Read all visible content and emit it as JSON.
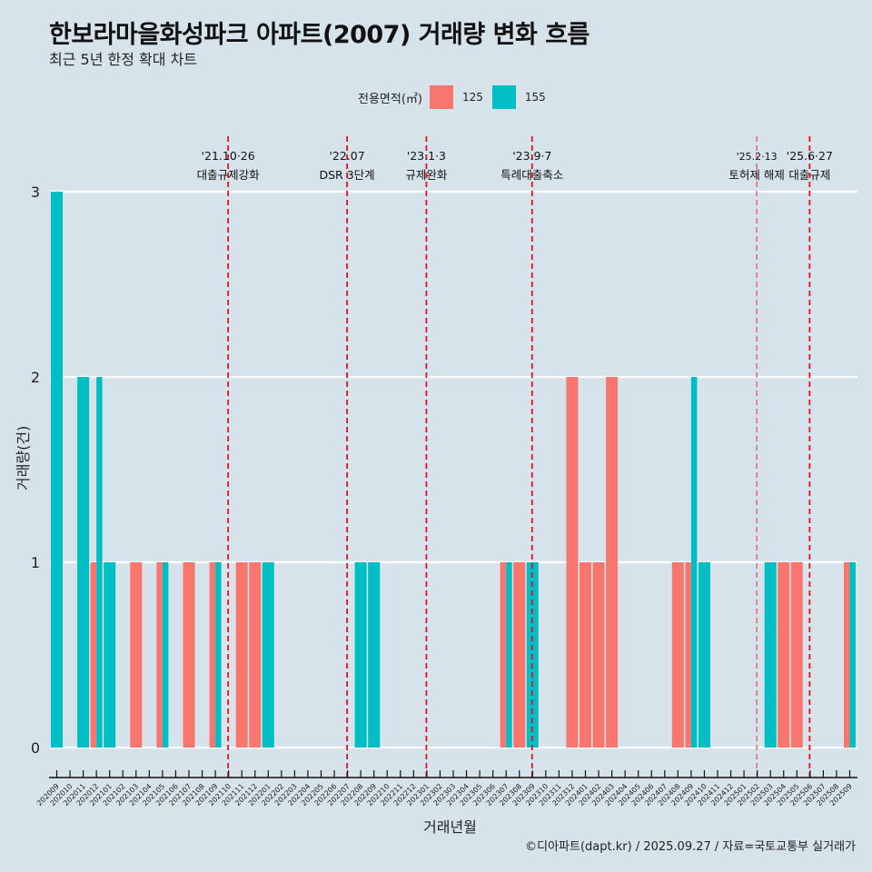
{
  "header": {
    "title": "한보라마을화성파크 아파트(2007) 거래량 변화 흐름",
    "subtitle": "최근 5년 한정 확대 차트"
  },
  "legend": {
    "title": "전용면적(㎡)",
    "items": [
      {
        "label": "125",
        "color": "#f8766d"
      },
      {
        "label": "155",
        "color": "#00bfc4"
      }
    ]
  },
  "caption": "©디아파트(dapt.kr) / 2025.09.27 / 자료=국토교통부 실거래가",
  "chart_data": {
    "type": "bar",
    "title": "한보라마을화성파크 아파트(2007) 거래량 변화 흐름",
    "subtitle": "최근 5년 한정 확대 차트",
    "xlabel": "거래년월",
    "ylabel": "거래량(건)",
    "ylim": [
      0,
      3
    ],
    "yticks": [
      0,
      1,
      2,
      3
    ],
    "grid": true,
    "legend_position": "top",
    "categories": [
      "202009",
      "202010",
      "202011",
      "202012",
      "202101",
      "202102",
      "202103",
      "202104",
      "202105",
      "202106",
      "202107",
      "202108",
      "202109",
      "202110",
      "202111",
      "202112",
      "202201",
      "202202",
      "202203",
      "202204",
      "202205",
      "202206",
      "202207",
      "202208",
      "202209",
      "202210",
      "202211",
      "202212",
      "202301",
      "202302",
      "202303",
      "202304",
      "202305",
      "202306",
      "202307",
      "202308",
      "202309",
      "202310",
      "202311",
      "202312",
      "202401",
      "202402",
      "202403",
      "202404",
      "202405",
      "202406",
      "202407",
      "202408",
      "202409",
      "202410",
      "202411",
      "202412",
      "202501",
      "202502",
      "202503",
      "202504",
      "202505",
      "202506",
      "202507",
      "202508",
      "202509"
    ],
    "series": [
      {
        "name": "125",
        "color": "#f8766d",
        "values": [
          0,
          0,
          0,
          1,
          0,
          0,
          1,
          0,
          1,
          0,
          1,
          0,
          1,
          0,
          1,
          1,
          0,
          0,
          0,
          0,
          0,
          0,
          0,
          0,
          0,
          0,
          0,
          0,
          0,
          0,
          0,
          0,
          0,
          0,
          1,
          1,
          0,
          0,
          0,
          2,
          1,
          1,
          2,
          0,
          0,
          0,
          0,
          1,
          1,
          0,
          0,
          0,
          0,
          0,
          0,
          1,
          1,
          0,
          0,
          0,
          1
        ]
      },
      {
        "name": "155",
        "color": "#00bfc4",
        "values": [
          3,
          0,
          2,
          2,
          1,
          0,
          0,
          0,
          1,
          0,
          0,
          0,
          1,
          0,
          0,
          0,
          1,
          0,
          0,
          0,
          0,
          0,
          0,
          1,
          1,
          0,
          0,
          0,
          0,
          0,
          0,
          0,
          0,
          0,
          1,
          0,
          1,
          0,
          0,
          0,
          0,
          0,
          0,
          0,
          0,
          0,
          0,
          0,
          2,
          1,
          0,
          0,
          0,
          0,
          1,
          0,
          0,
          0,
          0,
          0,
          1
        ]
      }
    ],
    "events": [
      {
        "month": "202110",
        "date": "'21.10·26",
        "label": "대출규제강화",
        "style": "bold"
      },
      {
        "month": "202207",
        "date": "'22.07",
        "label": "DSR 3단계",
        "style": "bold"
      },
      {
        "month": "202301",
        "date": "'23.1·3",
        "label": "규제완화",
        "style": "bold"
      },
      {
        "month": "202309",
        "date": "'23.9·7",
        "label": "특례대출축소",
        "style": "bold"
      },
      {
        "month": "202502",
        "date": "'25.2·13",
        "label": "토허제 해제",
        "style": "light"
      },
      {
        "month": "202506",
        "date": "'25.6·27",
        "label": "대출규제",
        "style": "bold"
      }
    ]
  }
}
